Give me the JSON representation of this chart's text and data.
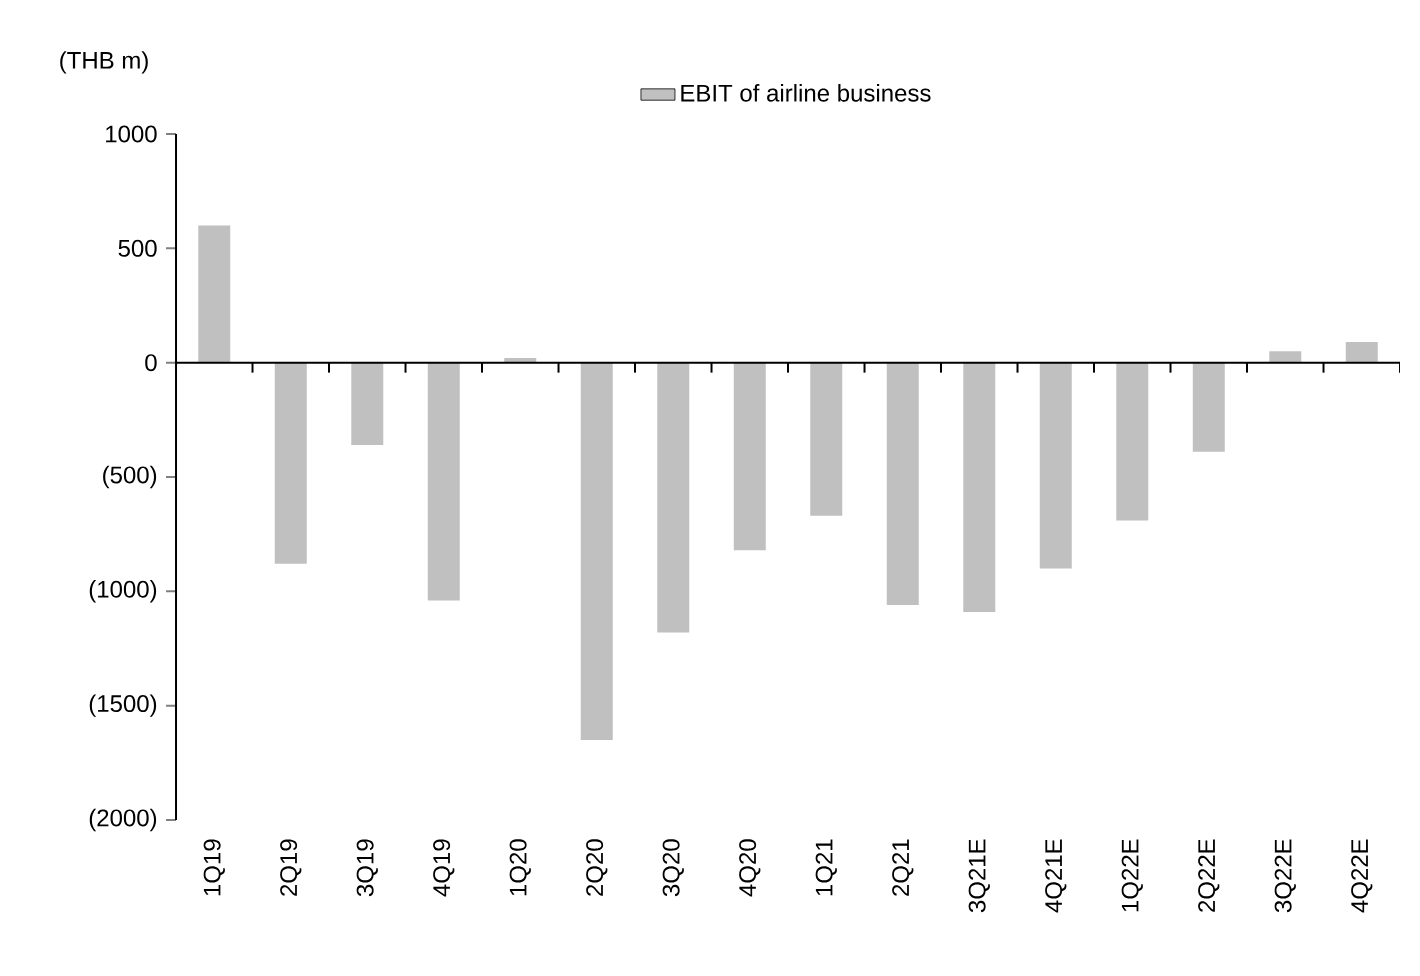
{
  "chart_data": {
    "type": "bar",
    "ylabel": "(THB m)",
    "categories": [
      "1Q19",
      "2Q19",
      "3Q19",
      "4Q19",
      "1Q20",
      "2Q20",
      "3Q20",
      "4Q20",
      "1Q21",
      "2Q21",
      "3Q21E",
      "4Q21E",
      "1Q22E",
      "2Q22E",
      "3Q22E",
      "4Q22E"
    ],
    "series": [
      {
        "name": "EBIT of airline business",
        "color": "#c0c0c0",
        "values": [
          600,
          -880,
          -360,
          -1040,
          20,
          -1650,
          -1180,
          -820,
          -670,
          -1060,
          -1090,
          -900,
          -690,
          -390,
          50,
          90
        ]
      }
    ],
    "ylim": [
      -2000,
      1000
    ],
    "yticks": [
      1000,
      500,
      0,
      {
        "value": -500,
        "label": "(500)"
      },
      {
        "value": -1000,
        "label": "(1000)"
      },
      {
        "value": -1500,
        "label": "(1500)"
      },
      {
        "value": -2000,
        "label": "(2000)"
      }
    ],
    "legend": "top"
  }
}
